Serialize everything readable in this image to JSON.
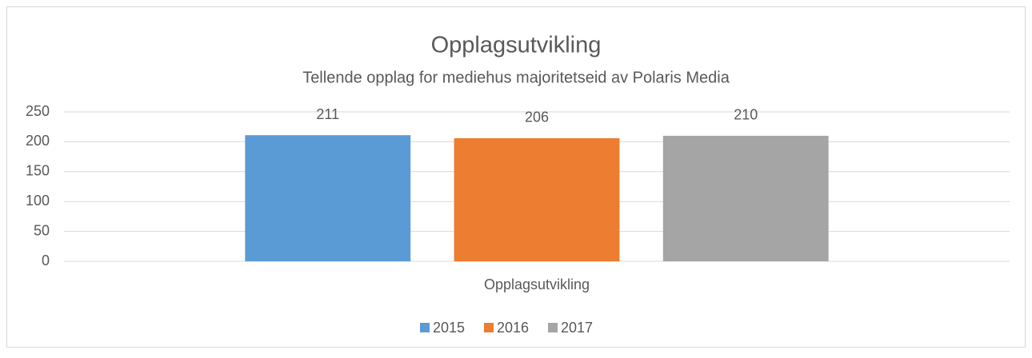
{
  "chart_data": {
    "type": "bar",
    "title": "Opplagsutvikling",
    "subtitle": "Tellende opplag for mediehus majoritetseid av Polaris Media",
    "categories": [
      "Opplagsutvikling"
    ],
    "series": [
      {
        "name": "2015",
        "color": "#5b9bd5",
        "values": [
          211
        ]
      },
      {
        "name": "2016",
        "color": "#ed7d31",
        "values": [
          206
        ]
      },
      {
        "name": "2017",
        "color": "#a5a5a5",
        "values": [
          210
        ]
      }
    ],
    "ylim": [
      0,
      250
    ],
    "yticks": [
      0,
      50,
      100,
      150,
      200,
      250
    ],
    "grid": true,
    "legend": "bottom"
  }
}
